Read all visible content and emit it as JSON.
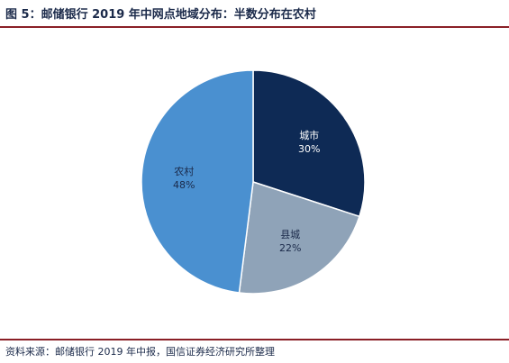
{
  "header": {
    "title": "图 5：邮储银行 2019 年中网点地域分布：半数分布在农村"
  },
  "footer": {
    "source": "资料来源：邮储银行 2019 年中报，国信证券经济研究所整理"
  },
  "chart_data": {
    "type": "pie",
    "title": "图 5：邮储银行 2019 年中网点地域分布：半数分布在农村",
    "start": "12 o'clock",
    "direction": "clockwise",
    "slices": [
      {
        "label": "城市",
        "value": 30,
        "value_label": "30%",
        "color": "#0e2a55",
        "text_color": "#ffffff"
      },
      {
        "label": "县城",
        "value": 22,
        "value_label": "22%",
        "color": "#8fa3b8",
        "text_color": "#1b2a4a"
      },
      {
        "label": "农村",
        "value": 48,
        "value_label": "48%",
        "color": "#4a90d0",
        "text_color": "#1b2a4a"
      }
    ]
  }
}
